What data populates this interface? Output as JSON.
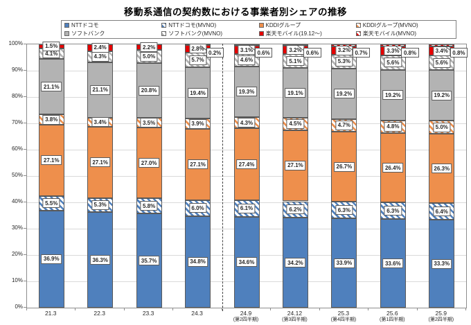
{
  "title": "移動系通信の契約数における事業者別シェアの推移",
  "colors": {
    "docomo": "#4f80bd",
    "kddi": "#ee8f4c",
    "softbank": "#b3b3b3",
    "rakuten": "#e60000",
    "segment_border": "#595959",
    "grid": "#d9d9d9",
    "axis": "#8c8c8c"
  },
  "chart_data": {
    "type": "bar",
    "stacked": true,
    "title": "移動系通信の契約数における事業者別シェアの推移",
    "xlabel": "",
    "ylabel": "",
    "ylim": [
      0,
      100
    ],
    "grid": true,
    "legend_position": "top",
    "yticks": [
      "0%",
      "10%",
      "20%",
      "30%",
      "40%",
      "50%",
      "60%",
      "70%",
      "80%",
      "90%",
      "100%"
    ],
    "categories": [
      "21.3",
      "22.3",
      "23.3",
      "24.3",
      "24.9",
      "24.12",
      "25.3",
      "25.6",
      "25.9"
    ],
    "category_sublabels": [
      "",
      "",
      "",
      "",
      "(第2四半期)",
      "(第3四半期)",
      "(第4四半期)",
      "(第1四半期)",
      "(第2四半期)"
    ],
    "divider_after_category": "24.3",
    "series": [
      {
        "name": "NTTドコモ",
        "key": "docomo",
        "hatched": false,
        "callout": false,
        "values": [
          36.9,
          36.3,
          35.7,
          34.8,
          34.6,
          34.2,
          33.9,
          33.6,
          33.3
        ]
      },
      {
        "name": "NTTドコモ(MVNO)",
        "key": "docomo",
        "hatched": true,
        "callout": false,
        "values": [
          5.5,
          5.3,
          5.8,
          6.0,
          6.1,
          6.2,
          6.3,
          6.3,
          6.4
        ]
      },
      {
        "name": "KDDIグループ",
        "key": "kddi",
        "hatched": false,
        "callout": false,
        "values": [
          27.1,
          27.1,
          27.0,
          27.1,
          27.4,
          27.1,
          26.7,
          26.4,
          26.3
        ]
      },
      {
        "name": "KDDIグループ(MVNO)",
        "key": "kddi",
        "hatched": true,
        "callout": false,
        "values": [
          3.8,
          3.4,
          3.5,
          3.9,
          4.3,
          4.5,
          4.7,
          4.8,
          5.0
        ]
      },
      {
        "name": "ソフトバンク",
        "key": "softbank",
        "hatched": false,
        "callout": false,
        "values": [
          21.1,
          21.1,
          20.8,
          19.4,
          19.3,
          19.1,
          19.2,
          19.2,
          19.2
        ]
      },
      {
        "name": "ソフトバンク(MVNO)",
        "key": "softbank",
        "hatched": true,
        "callout": false,
        "values": [
          4.1,
          4.3,
          5.0,
          5.7,
          4.6,
          5.1,
          5.3,
          5.6,
          5.6
        ]
      },
      {
        "name": "楽天モバイル(19.12～)",
        "key": "rakuten",
        "hatched": false,
        "callout": false,
        "values": [
          1.5,
          2.4,
          2.2,
          2.8,
          3.1,
          3.2,
          3.2,
          3.3,
          3.4
        ]
      },
      {
        "name": "楽天モバイル(MVNO)",
        "key": "rakuten",
        "hatched": true,
        "callout": true,
        "values": [
          null,
          null,
          null,
          0.2,
          0.6,
          0.6,
          0.7,
          0.8,
          0.8
        ]
      }
    ]
  }
}
